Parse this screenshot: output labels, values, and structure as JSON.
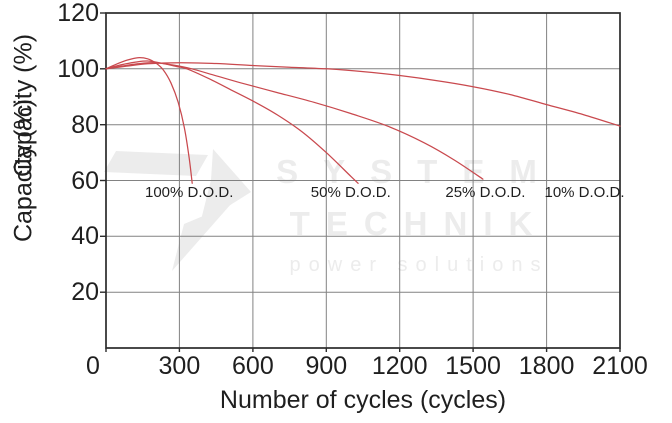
{
  "watermark": {
    "line1": "SYSTEM",
    "line2": "TECHNIK",
    "line3": "power solutions"
  },
  "chart_data": {
    "type": "line",
    "title": "",
    "xlabel": "Number of cycles (cycles)",
    "ylabel": "Capacity (%)",
    "ylabel_note": "y-axis label is printed twice, overlapping",
    "xlim": [
      0,
      2100
    ],
    "ylim": [
      0,
      120
    ],
    "x_ticks": [
      0,
      300,
      600,
      900,
      1200,
      1500,
      1800,
      2100
    ],
    "y_ticks": [
      20,
      40,
      60,
      80,
      100,
      120
    ],
    "grid": true,
    "legend_position": "none",
    "colors": {
      "line": "#c9494e",
      "grid": "#828282",
      "axis": "#2b2b2b",
      "text": "#1f1f1f",
      "watermark": "#ececec"
    },
    "series": [
      {
        "name": "100% D.O.D.",
        "points": [
          [
            0,
            100
          ],
          [
            40,
            101.6
          ],
          [
            90,
            103.2
          ],
          [
            130,
            104
          ],
          [
            170,
            103.6
          ],
          [
            205,
            102
          ],
          [
            235,
            99.5
          ],
          [
            265,
            95
          ],
          [
            295,
            88
          ],
          [
            320,
            79
          ],
          [
            340,
            68
          ],
          [
            352,
            59
          ]
        ]
      },
      {
        "name": "50% D.O.D.",
        "points": [
          [
            0,
            100
          ],
          [
            60,
            101.4
          ],
          [
            120,
            102.4
          ],
          [
            170,
            102.8
          ],
          [
            230,
            102
          ],
          [
            290,
            100.8
          ],
          [
            330,
            100
          ],
          [
            420,
            96.5
          ],
          [
            510,
            92.5
          ],
          [
            610,
            88
          ],
          [
            700,
            83.5
          ],
          [
            800,
            77.5
          ],
          [
            900,
            70
          ],
          [
            1000,
            61.5
          ],
          [
            1030,
            59
          ]
        ]
      },
      {
        "name": "25% D.O.D.",
        "points": [
          [
            0,
            100
          ],
          [
            60,
            100.9
          ],
          [
            130,
            101.8
          ],
          [
            200,
            102.2
          ],
          [
            270,
            101.4
          ],
          [
            350,
            100
          ],
          [
            450,
            97.5
          ],
          [
            550,
            95
          ],
          [
            700,
            91.5
          ],
          [
            850,
            88
          ],
          [
            1000,
            84
          ],
          [
            1150,
            79.5
          ],
          [
            1300,
            73.5
          ],
          [
            1420,
            67.5
          ],
          [
            1540,
            60.5
          ]
        ]
      },
      {
        "name": "10% D.O.D.",
        "points": [
          [
            0,
            100
          ],
          [
            80,
            100.9
          ],
          [
            170,
            101.8
          ],
          [
            300,
            102.2
          ],
          [
            450,
            101.9
          ],
          [
            600,
            101.2
          ],
          [
            750,
            100.6
          ],
          [
            900,
            100
          ],
          [
            1050,
            99
          ],
          [
            1200,
            97.6
          ],
          [
            1350,
            95.8
          ],
          [
            1500,
            93.6
          ],
          [
            1650,
            90.8
          ],
          [
            1800,
            87.2
          ],
          [
            1950,
            83.6
          ],
          [
            2100,
            79.5
          ]
        ]
      }
    ],
    "annotations": [
      {
        "text": "100% D.O.D.",
        "x": 340,
        "y": 56
      },
      {
        "text": "50% D.O.D.",
        "x": 1000,
        "y": 56
      },
      {
        "text": "25% D.O.D.",
        "x": 1550,
        "y": 56
      },
      {
        "text": "10% D.O.D.",
        "x": 1955,
        "y": 56
      }
    ]
  }
}
